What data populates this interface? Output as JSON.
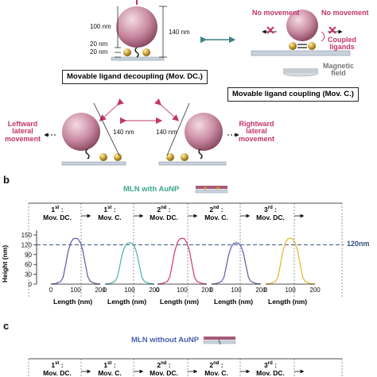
{
  "panel_a": {
    "dimensions": {
      "np": "100 nm",
      "gap1": "20 nm",
      "gap2": "20 nm",
      "total": "140 nm",
      "lateral_left": "140 nm",
      "lateral_right": "140 nm"
    },
    "decoupling_box": "Movable ligand decoupling (Mov. DC.)",
    "coupling_box": "Movable ligand coupling (Mov. C.)",
    "left_movement": [
      "Leftward",
      "lateral",
      "movement"
    ],
    "right_movement": [
      "Rightward",
      "lateral",
      "movement"
    ],
    "no_movement_left": "No movement",
    "no_movement_right": "No movement",
    "coupled_ligands": [
      "Coupled",
      "ligands"
    ],
    "magnetic_field": [
      "Magnetic",
      "field"
    ]
  },
  "panel_b": {
    "letter": "b",
    "title": "MLN with AuNP",
    "steps": [
      {
        "ord": "1",
        "sup": "st",
        "label": "Mov. DC."
      },
      {
        "ord": "1",
        "sup": "st",
        "label": "Mov. C."
      },
      {
        "ord": "2",
        "sup": "nd",
        "label": "Mov. DC."
      },
      {
        "ord": "2",
        "sup": "nd",
        "label": "Mov. C."
      },
      {
        "ord": "3",
        "sup": "rd",
        "label": "Mov. DC."
      }
    ],
    "threshold_label": "120nm",
    "ylabel": "Height (nm)",
    "xlabel": "Length (nm)"
  },
  "panel_c": {
    "letter": "c",
    "title": "MLN without AuNP",
    "steps": [
      {
        "ord": "1",
        "sup": "st",
        "label": "Mov. DC."
      },
      {
        "ord": "1",
        "sup": "st",
        "label": "Mov. C."
      },
      {
        "ord": "2",
        "sup": "nd",
        "label": "Mov. DC."
      },
      {
        "ord": "2",
        "sup": "nd",
        "label": "Mov. C."
      },
      {
        "ord": "3",
        "sup": "rd",
        "label": "Mov. DC."
      }
    ]
  },
  "colors": {
    "np_fill": "#c98aa1",
    "au_fill": "#c9a035",
    "curves": [
      "#5a5aa6",
      "#3fb5a8",
      "#d9336a",
      "#5a5aa6",
      "#e3b81f"
    ],
    "dash": "#2f4f7f",
    "arrow_pink": "#c2356a",
    "arrow_teal": "#3f7f86"
  },
  "chart_data": {
    "type": "line",
    "xlabel": "Length (nm)",
    "ylabel": "Height (nm)",
    "xlim": [
      0,
      200
    ],
    "ylim": [
      0,
      150
    ],
    "xticks": [
      0,
      100,
      200
    ],
    "yticks": [
      0,
      30,
      60,
      90,
      120,
      150
    ],
    "threshold": 120,
    "x": [
      0,
      20,
      40,
      50,
      60,
      70,
      80,
      90,
      100,
      110,
      120,
      130,
      140,
      150,
      160,
      180,
      200
    ],
    "series": [
      {
        "values": [
          0,
          2,
          8,
          22,
          60,
          100,
          125,
          138,
          140,
          138,
          125,
          100,
          60,
          22,
          8,
          2,
          0
        ]
      },
      {
        "values": [
          0,
          2,
          8,
          20,
          55,
          92,
          114,
          124,
          126,
          124,
          114,
          92,
          55,
          20,
          8,
          2,
          0
        ]
      },
      {
        "values": [
          0,
          2,
          8,
          22,
          60,
          100,
          125,
          138,
          140,
          138,
          125,
          100,
          60,
          22,
          8,
          2,
          0
        ]
      },
      {
        "values": [
          0,
          2,
          8,
          20,
          55,
          92,
          114,
          124,
          126,
          124,
          114,
          92,
          55,
          20,
          8,
          2,
          0
        ]
      },
      {
        "values": [
          0,
          2,
          8,
          22,
          60,
          100,
          125,
          138,
          140,
          138,
          125,
          100,
          60,
          22,
          8,
          2,
          0
        ]
      }
    ]
  }
}
